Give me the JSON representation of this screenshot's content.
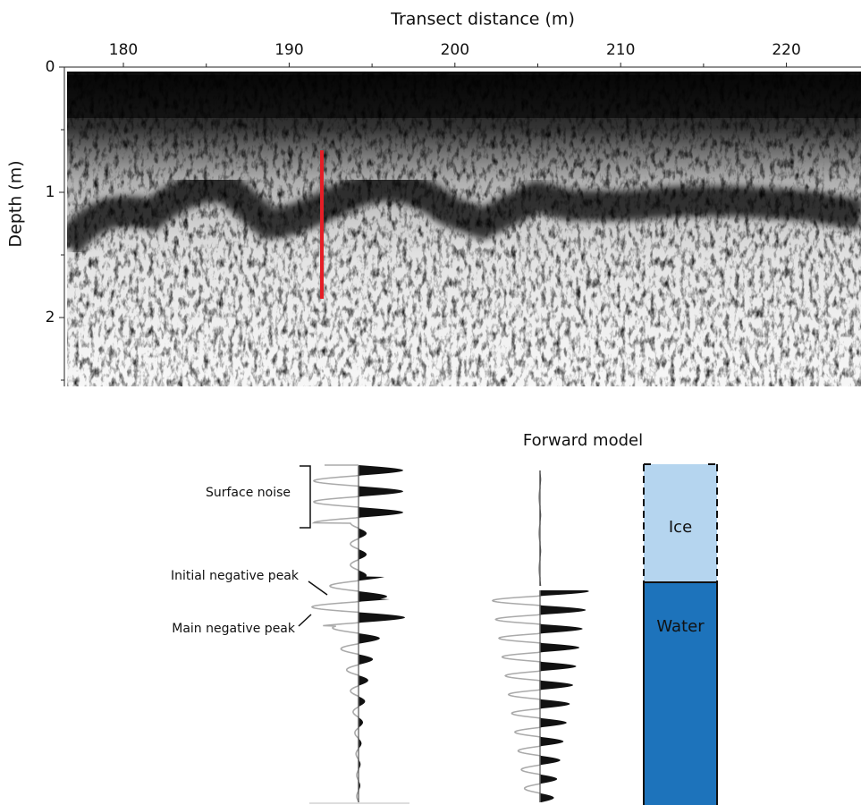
{
  "radargram": {
    "x_axis_label": "Transect distance (m)",
    "y_axis_label": "Depth (m)",
    "xticks": [
      180,
      190,
      200,
      210,
      220
    ],
    "xlim": [
      176.6,
      224.5
    ],
    "yticks": [
      0,
      1,
      2
    ],
    "ylim": [
      0,
      2.55
    ]
  },
  "trace_annotations": {
    "surface_noise": "Surface noise",
    "initial_peak": "Initial negative peak",
    "main_peak": "Main negative peak"
  },
  "forward_model": {
    "title": "Forward model",
    "upper_layer": "Ice",
    "lower_layer": "Water"
  }
}
